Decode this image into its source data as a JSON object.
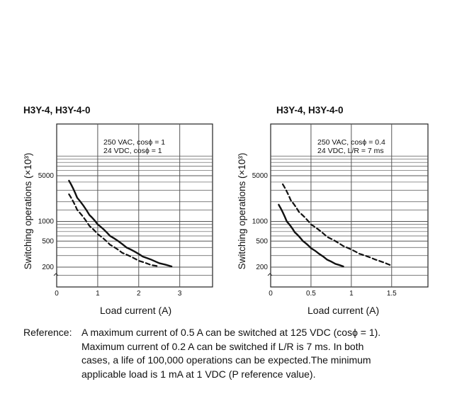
{
  "chart_data": [
    {
      "type": "line",
      "title": "H3Y-4, H3Y-4-0",
      "xlabel": "Load current (A)",
      "ylabel": "Switching operations (×10³)",
      "xticks": [
        0,
        1,
        2,
        3
      ],
      "xtick_labels": [
        "0",
        "1",
        "2",
        "3"
      ],
      "xlim": [
        0,
        3.8
      ],
      "yscale": "log",
      "yticks": [
        200,
        500,
        1000,
        5000
      ],
      "ytick_labels": [
        "200",
        "500",
        "1000",
        "5000"
      ],
      "annotation": [
        "250 VAC, cosϕ = 1",
        "24 VDC, cosϕ = 1"
      ],
      "series": [
        {
          "style": "solid",
          "x": [
            0.3,
            0.5,
            0.8,
            1.0,
            1.3,
            1.7,
            2.1,
            2.5,
            2.8
          ],
          "y": [
            4200,
            2300,
            1250,
            900,
            600,
            400,
            290,
            230,
            205
          ]
        },
        {
          "style": "dashed",
          "x": [
            0.3,
            0.5,
            0.8,
            1.0,
            1.3,
            1.6,
            2.0,
            2.3,
            2.5
          ],
          "y": [
            2600,
            1500,
            850,
            640,
            440,
            330,
            250,
            215,
            205
          ]
        }
      ]
    },
    {
      "type": "line",
      "title": "H3Y-4, H3Y-4-0",
      "xlabel": "Load current (A)",
      "ylabel": "Switching operations (×10³)",
      "xticks": [
        0,
        0.5,
        1,
        1.5
      ],
      "xtick_labels": [
        "0",
        "0.5",
        "1",
        "1.5"
      ],
      "xlim": [
        0,
        1.95
      ],
      "yscale": "log",
      "yticks": [
        200,
        500,
        1000,
        5000
      ],
      "ytick_labels": [
        "200",
        "500",
        "1000",
        "5000"
      ],
      "annotation": [
        "250 VAC, cosϕ = 0.4",
        "24 VDC, L/R = 7 ms"
      ],
      "series": [
        {
          "style": "solid",
          "x": [
            0.1,
            0.2,
            0.3,
            0.4,
            0.5,
            0.6,
            0.7,
            0.8,
            0.9
          ],
          "y": [
            1800,
            1000,
            680,
            500,
            390,
            320,
            260,
            225,
            205
          ]
        },
        {
          "style": "dashed",
          "x": [
            0.15,
            0.25,
            0.35,
            0.5,
            0.7,
            0.9,
            1.1,
            1.3,
            1.5
          ],
          "y": [
            3700,
            2100,
            1400,
            900,
            580,
            420,
            320,
            260,
            210
          ]
        }
      ]
    }
  ],
  "footer": {
    "label": "Reference:",
    "lines": [
      "A maximum current of 0.5 A can be switched at 125 VDC (cosϕ = 1).",
      "Maximum current of 0.2 A can be switched if L/R is 7 ms. In both",
      "cases, a life of 100,000 operations can be expected.The minimum",
      "applicable load is 1 mA at 1 VDC (P reference value)."
    ]
  }
}
